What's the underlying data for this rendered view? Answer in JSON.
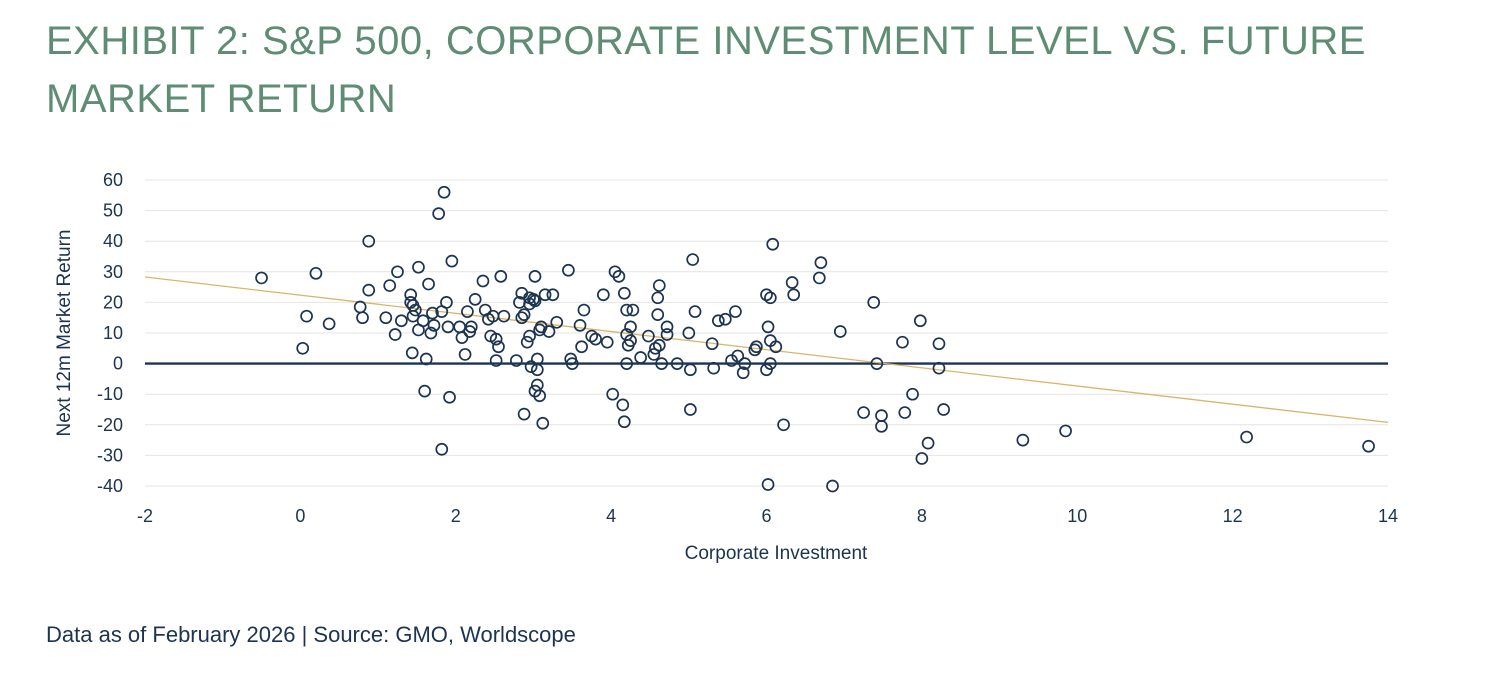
{
  "title": "EXHIBIT 2: S&P 500, CORPORATE INVESTMENT LEVEL VS. FUTURE MARKET RETURN",
  "footer": "Data as of February 2026 | Source: GMO, Worldscope",
  "colors": {
    "title": "#5e8d74",
    "text": "#1c3450",
    "marker": "#1c3450",
    "trend": "#d9b56b",
    "zero_line": "#1c3450",
    "grid": "#e4e4e4"
  },
  "chart_data": {
    "type": "scatter",
    "title": "",
    "xlabel": "Corporate Investment",
    "ylabel": "Next 12m Market Return",
    "xlim": [
      -2,
      14
    ],
    "ylim": [
      -40,
      60
    ],
    "xticks": [
      -2,
      0,
      2,
      4,
      6,
      8,
      10,
      12,
      14
    ],
    "yticks": [
      60,
      50,
      40,
      30,
      20,
      10,
      0,
      -10,
      -20,
      -30,
      -40
    ],
    "grid": "horizontal",
    "zero_line": true,
    "trendline": {
      "x": [
        -2,
        14
      ],
      "y": [
        28.3,
        -19.2
      ]
    },
    "points": [
      [
        -0.5,
        28
      ],
      [
        0.2,
        29.5
      ],
      [
        0.08,
        15.5
      ],
      [
        0.37,
        13
      ],
      [
        0.03,
        5
      ],
      [
        0.77,
        18.5
      ],
      [
        0.8,
        15
      ],
      [
        0.88,
        24
      ],
      [
        0.88,
        40
      ],
      [
        1.1,
        15
      ],
      [
        1.15,
        25.5
      ],
      [
        1.22,
        9.5
      ],
      [
        1.25,
        30
      ],
      [
        1.3,
        14
      ],
      [
        1.42,
        22.5
      ],
      [
        1.42,
        20
      ],
      [
        1.45,
        19
      ],
      [
        1.45,
        15.5
      ],
      [
        1.48,
        17.5
      ],
      [
        1.52,
        31.5
      ],
      [
        1.52,
        11
      ],
      [
        1.44,
        3.5
      ],
      [
        1.58,
        14
      ],
      [
        1.62,
        1.5
      ],
      [
        1.6,
        -9
      ],
      [
        1.65,
        26
      ],
      [
        1.68,
        10
      ],
      [
        1.7,
        16.5
      ],
      [
        1.72,
        12.5
      ],
      [
        1.78,
        49
      ],
      [
        1.82,
        17
      ],
      [
        1.85,
        56
      ],
      [
        1.88,
        20
      ],
      [
        1.9,
        12
      ],
      [
        1.95,
        33.5
      ],
      [
        1.92,
        -11
      ],
      [
        1.82,
        -28
      ],
      [
        2.05,
        12
      ],
      [
        2.08,
        8.5
      ],
      [
        2.12,
        3
      ],
      [
        2.15,
        17
      ],
      [
        2.18,
        10.5
      ],
      [
        2.2,
        12
      ],
      [
        2.25,
        21
      ],
      [
        2.35,
        27
      ],
      [
        2.38,
        17.5
      ],
      [
        2.42,
        14.5
      ],
      [
        2.45,
        9
      ],
      [
        2.48,
        15.5
      ],
      [
        2.52,
        1
      ],
      [
        2.52,
        8
      ],
      [
        2.55,
        5.5
      ],
      [
        2.58,
        28.5
      ],
      [
        2.62,
        15.5
      ],
      [
        2.78,
        1
      ],
      [
        2.82,
        20
      ],
      [
        2.85,
        23
      ],
      [
        2.85,
        15
      ],
      [
        2.88,
        16
      ],
      [
        2.92,
        7
      ],
      [
        2.95,
        21.5
      ],
      [
        2.95,
        19.5
      ],
      [
        2.97,
        -1
      ],
      [
        2.95,
        9
      ],
      [
        2.88,
        -16.5
      ],
      [
        3.0,
        21
      ],
      [
        3.02,
        20.5
      ],
      [
        3.02,
        28.5
      ],
      [
        3.02,
        -9
      ],
      [
        3.05,
        -7
      ],
      [
        3.05,
        -2
      ],
      [
        3.05,
        1.5
      ],
      [
        3.08,
        11
      ],
      [
        3.08,
        -10.5
      ],
      [
        3.1,
        12
      ],
      [
        3.12,
        -19.5
      ],
      [
        3.15,
        22.5
      ],
      [
        3.2,
        10.5
      ],
      [
        3.25,
        22.5
      ],
      [
        3.3,
        13.5
      ],
      [
        3.45,
        30.5
      ],
      [
        3.48,
        1.5
      ],
      [
        3.5,
        0
      ],
      [
        3.6,
        12.5
      ],
      [
        3.62,
        5.5
      ],
      [
        3.65,
        17.5
      ],
      [
        3.75,
        9
      ],
      [
        3.8,
        8
      ],
      [
        3.9,
        22.5
      ],
      [
        3.95,
        7
      ],
      [
        4.02,
        -10
      ],
      [
        4.05,
        30
      ],
      [
        4.1,
        28.5
      ],
      [
        4.15,
        -13.5
      ],
      [
        4.17,
        23
      ],
      [
        4.17,
        -19
      ],
      [
        4.2,
        17.5
      ],
      [
        4.2,
        0
      ],
      [
        4.2,
        9.5
      ],
      [
        4.22,
        6
      ],
      [
        4.25,
        7.5
      ],
      [
        4.25,
        12
      ],
      [
        4.28,
        17.5
      ],
      [
        4.38,
        2
      ],
      [
        4.48,
        9
      ],
      [
        4.55,
        3
      ],
      [
        4.57,
        5
      ],
      [
        4.6,
        16
      ],
      [
        4.6,
        21.5
      ],
      [
        4.62,
        25.5
      ],
      [
        4.62,
        6
      ],
      [
        4.65,
        0
      ],
      [
        4.72,
        12
      ],
      [
        4.72,
        9.5
      ],
      [
        4.85,
        0
      ],
      [
        5.0,
        10
      ],
      [
        5.02,
        -2
      ],
      [
        5.02,
        -15
      ],
      [
        5.05,
        34
      ],
      [
        5.08,
        17
      ],
      [
        5.3,
        6.5
      ],
      [
        5.32,
        -1.5
      ],
      [
        5.38,
        14
      ],
      [
        5.47,
        14.5
      ],
      [
        5.55,
        1
      ],
      [
        5.6,
        17
      ],
      [
        5.63,
        2.5
      ],
      [
        5.7,
        -3
      ],
      [
        5.72,
        0
      ],
      [
        5.85,
        4.5
      ],
      [
        5.87,
        5.5
      ],
      [
        6.0,
        22.5
      ],
      [
        6.02,
        12
      ],
      [
        6.0,
        -2
      ],
      [
        6.05,
        21.5
      ],
      [
        6.05,
        7.5
      ],
      [
        6.05,
        0
      ],
      [
        6.08,
        39
      ],
      [
        6.12,
        5.5
      ],
      [
        6.02,
        -39.5
      ],
      [
        6.22,
        -20
      ],
      [
        6.33,
        26.5
      ],
      [
        6.35,
        22.5
      ],
      [
        6.68,
        28
      ],
      [
        6.7,
        33
      ],
      [
        6.85,
        -40
      ],
      [
        6.95,
        10.5
      ],
      [
        7.25,
        -16
      ],
      [
        7.38,
        20
      ],
      [
        7.42,
        0
      ],
      [
        7.48,
        -17
      ],
      [
        7.48,
        -20.5
      ],
      [
        7.75,
        7
      ],
      [
        7.78,
        -16
      ],
      [
        7.88,
        -10
      ],
      [
        7.98,
        14
      ],
      [
        8.0,
        -31
      ],
      [
        8.08,
        -26
      ],
      [
        8.22,
        6.5
      ],
      [
        8.22,
        -1.5
      ],
      [
        8.28,
        -15
      ],
      [
        9.3,
        -25
      ],
      [
        9.85,
        -22
      ],
      [
        12.18,
        -24
      ],
      [
        13.75,
        -27
      ]
    ]
  }
}
